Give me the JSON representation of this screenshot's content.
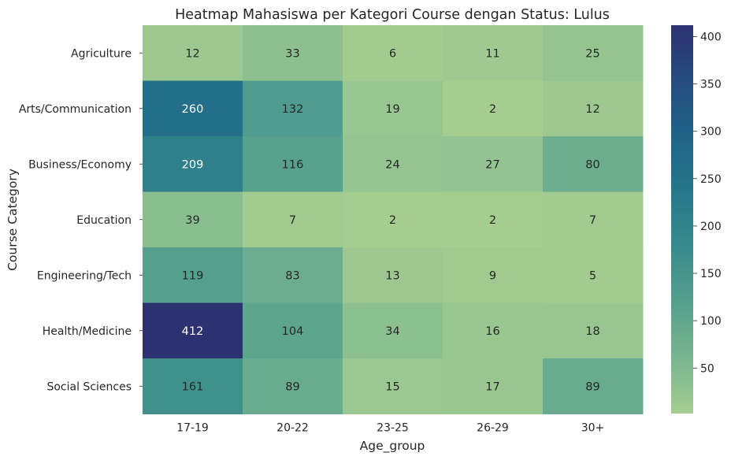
{
  "chart_data": {
    "type": "heatmap",
    "title": "Heatmap Mahasiswa per Kategori Course dengan Status: Lulus",
    "xlabel": "Age_group",
    "ylabel": "Course Category",
    "x_categories": [
      "17-19",
      "20-22",
      "23-25",
      "26-29",
      "30+"
    ],
    "y_categories": [
      "Agriculture",
      "Arts/Communication",
      "Business/Economy",
      "Education",
      "Engineering/Tech",
      "Health/Medicine",
      "Social Sciences"
    ],
    "values": [
      [
        12,
        33,
        6,
        11,
        25
      ],
      [
        260,
        132,
        19,
        2,
        12
      ],
      [
        209,
        116,
        24,
        27,
        80
      ],
      [
        39,
        7,
        2,
        2,
        7
      ],
      [
        119,
        83,
        13,
        9,
        5
      ],
      [
        412,
        104,
        34,
        16,
        18
      ],
      [
        161,
        89,
        15,
        17,
        89
      ]
    ],
    "colorbar": {
      "min": 2,
      "max": 412,
      "ticks": [
        50,
        100,
        150,
        200,
        250,
        300,
        350,
        400
      ],
      "colormap": "crest",
      "colormap_stops": [
        "#a5cd90",
        "#79b58f",
        "#55a08d",
        "#388b8c",
        "#26778a",
        "#1e6388",
        "#264b7f",
        "#2c3172"
      ]
    },
    "annotation_colors": {
      "dark_text": "#262626",
      "light_text": "#ffffff"
    }
  }
}
